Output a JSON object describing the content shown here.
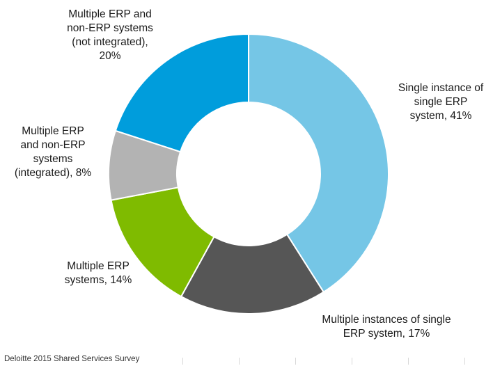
{
  "chart_data": {
    "type": "pie",
    "donut": true,
    "slices": [
      {
        "label_lines": [
          "Single instance of",
          "single ERP",
          "system, 41%"
        ],
        "value": 41,
        "color": "#75c6e6"
      },
      {
        "label_lines": [
          "Multiple instances of single",
          "ERP system, 17%"
        ],
        "value": 17,
        "color": "#565656"
      },
      {
        "label_lines": [
          "Multiple ERP",
          "systems, 14%"
        ],
        "value": 14,
        "color": "#7fbb00"
      },
      {
        "label_lines": [
          "Multiple ERP",
          "and non-ERP",
          "systems",
          "(integrated), 8%"
        ],
        "value": 8,
        "color": "#b3b3b3"
      },
      {
        "label_lines": [
          "Multiple ERP and",
          "non-ERP systems",
          "(not integrated),",
          "20%"
        ],
        "value": 20,
        "color": "#009ddc"
      }
    ]
  },
  "source": "Deloitte  2015 Shared Services Survey"
}
